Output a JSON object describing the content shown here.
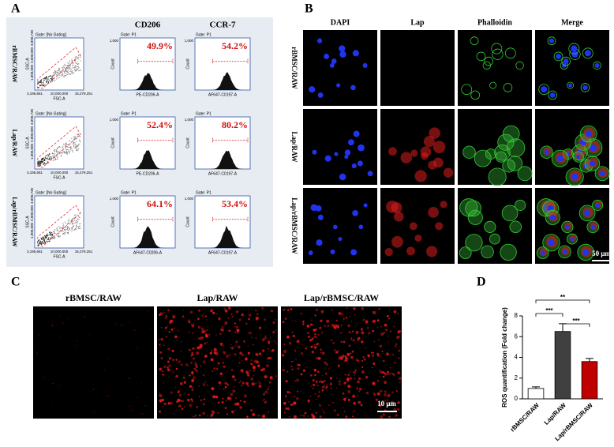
{
  "panel_a": {
    "label": "A",
    "columns": [
      "CD206",
      "CCR-7"
    ],
    "scatter_gate": "Gate: [No Gating]",
    "hist_gate": "Gate: P1",
    "scatter_xlabel": "FSC-A",
    "scatter_ylabel": "SSC-A",
    "scatter_xticks": [
      "3,195,661",
      "10,000,000",
      "15,279,251"
    ],
    "scatter_yticks": [
      "1,000,000",
      "2,000,000",
      "3,890,730"
    ],
    "hist_ylabel": "Count",
    "hist_ytick": "1,000",
    "rows": [
      {
        "name": "rBMSC/RAW",
        "percents": [
          "49.9%",
          "54.2%"
        ],
        "xlabels": [
          "PE-CD206-A",
          "AF647-C0197-A"
        ]
      },
      {
        "name": "Lap/RAW",
        "percents": [
          "52.4%",
          "80.2%"
        ],
        "xlabels": [
          "PE-CD206-A",
          "AF647-C0197-A"
        ]
      },
      {
        "name": "Lap/rBMSC/RAW",
        "percents": [
          "64.1%",
          "53.4%"
        ],
        "xlabels": [
          "AF647-C0206-A",
          "AF647-C0197-A"
        ]
      }
    ]
  },
  "panel_b": {
    "label": "B",
    "columns": [
      "DAPI",
      "Lap",
      "Phalloidin",
      "Merge"
    ],
    "rows": [
      "rBMSC/RAW",
      "Lap/RAW",
      "Lap/rBMSC/RAW"
    ],
    "scale": "50 μm"
  },
  "panel_c": {
    "label": "C",
    "titles": [
      "rBMSC/RAW",
      "Lap/RAW",
      "Lap/rBMSC/RAW"
    ],
    "scale": "10 μm"
  },
  "chart_data": {
    "type": "bar",
    "label": "D",
    "ylabel": "ROS quantification (Fold change)",
    "categories": [
      "rBMSC/RAW",
      "Lap/RAW",
      "Lap/rBMSC/RAW"
    ],
    "values": [
      1.0,
      6.5,
      3.6
    ],
    "errors": [
      0.15,
      0.75,
      0.3
    ],
    "colors": [
      "#ffffff",
      "#404040",
      "#c00000"
    ],
    "ylim": [
      0,
      8
    ],
    "yticks": [
      0,
      2,
      4,
      6,
      8
    ],
    "significance": [
      {
        "from": 0,
        "to": 2,
        "label": "**"
      },
      {
        "from": 0,
        "to": 1,
        "label": "***"
      },
      {
        "from": 1,
        "to": 2,
        "label": "***"
      }
    ]
  }
}
